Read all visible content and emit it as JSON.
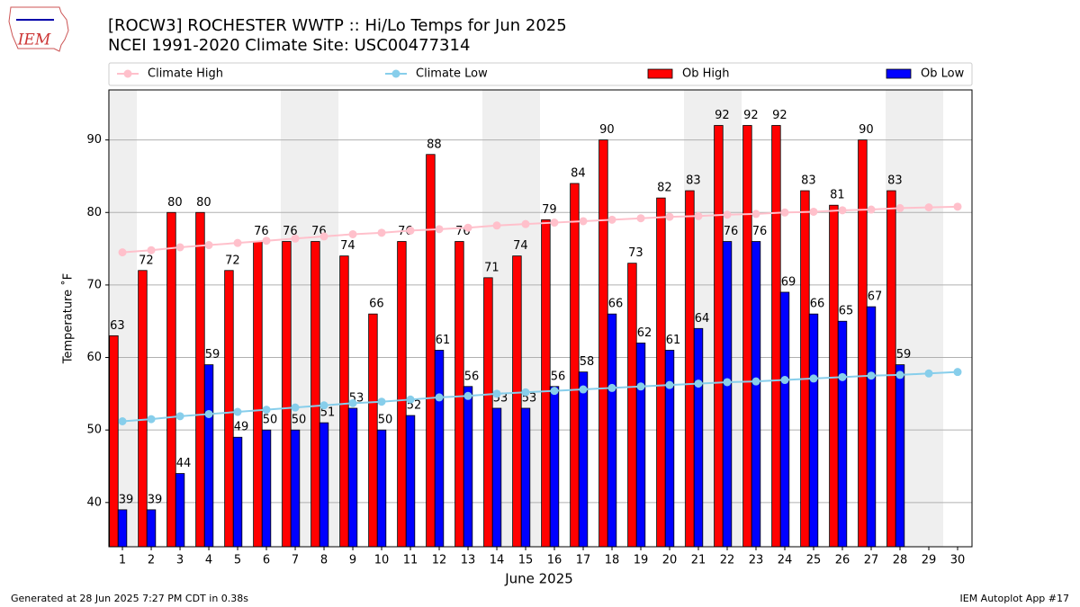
{
  "logo_text": "IEM",
  "footer_left": "Generated at 28 Jun 2025 7:27 PM CDT in 0.38s",
  "footer_right": "IEM Autoplot App #17",
  "chart_data": {
    "type": "bar",
    "title": "[ROCW3] ROCHESTER WWTP :: Hi/Lo Temps for Jun 2025",
    "subtitle": "NCEI 1991-2020 Climate Site: USC00477314",
    "x_label": "June 2025",
    "y_label": "Temperature ˚F",
    "x": [
      1,
      2,
      3,
      4,
      5,
      6,
      7,
      8,
      9,
      10,
      11,
      12,
      13,
      14,
      15,
      16,
      17,
      18,
      19,
      20,
      21,
      22,
      23,
      24,
      25,
      26,
      27,
      28,
      29,
      30
    ],
    "xlim": [
      0.53,
      30.5
    ],
    "xticks": [
      1,
      2,
      3,
      4,
      5,
      6,
      7,
      8,
      9,
      10,
      11,
      12,
      13,
      14,
      15,
      16,
      17,
      18,
      19,
      20,
      21,
      22,
      23,
      24,
      25,
      26,
      27,
      28,
      29,
      30
    ],
    "ylim": [
      33.9,
      96.9
    ],
    "yticks": [
      40,
      50,
      60,
      70,
      80,
      90
    ],
    "grid": true,
    "shaded_days": [
      1,
      7,
      8,
      14,
      15,
      21,
      22,
      28,
      29
    ],
    "series": [
      {
        "name": "Climate High",
        "kind": "line",
        "color": "#ffc0cb",
        "values": [
          74.5,
          74.8,
          75.2,
          75.5,
          75.8,
          76.1,
          76.4,
          76.7,
          77.0,
          77.2,
          77.5,
          77.7,
          77.9,
          78.2,
          78.4,
          78.6,
          78.8,
          79.0,
          79.2,
          79.4,
          79.5,
          79.7,
          79.8,
          80.0,
          80.1,
          80.3,
          80.4,
          80.6,
          80.7,
          80.8
        ]
      },
      {
        "name": "Climate Low",
        "kind": "line",
        "color": "#87ceeb",
        "values": [
          51.2,
          51.5,
          51.9,
          52.2,
          52.5,
          52.8,
          53.1,
          53.4,
          53.7,
          53.9,
          54.2,
          54.5,
          54.7,
          55.0,
          55.2,
          55.4,
          55.6,
          55.8,
          56.0,
          56.2,
          56.4,
          56.6,
          56.7,
          56.9,
          57.1,
          57.3,
          57.5,
          57.6,
          57.8,
          58.0
        ]
      },
      {
        "name": "Ob High",
        "kind": "bar",
        "color": "#ff0000",
        "values": [
          63,
          72,
          80,
          80,
          72,
          76,
          76,
          76,
          74,
          66,
          76,
          88,
          76,
          71,
          74,
          79,
          84,
          90,
          73,
          82,
          83,
          92,
          92,
          92,
          83,
          81,
          90,
          83,
          null,
          null
        ]
      },
      {
        "name": "Ob Low",
        "kind": "bar",
        "color": "#0000ff",
        "values": [
          39,
          39,
          44,
          59,
          49,
          50,
          50,
          51,
          53,
          50,
          52,
          61,
          56,
          53,
          53,
          56,
          58,
          66,
          62,
          61,
          64,
          76,
          76,
          69,
          66,
          65,
          67,
          59,
          null,
          null
        ]
      }
    ]
  }
}
